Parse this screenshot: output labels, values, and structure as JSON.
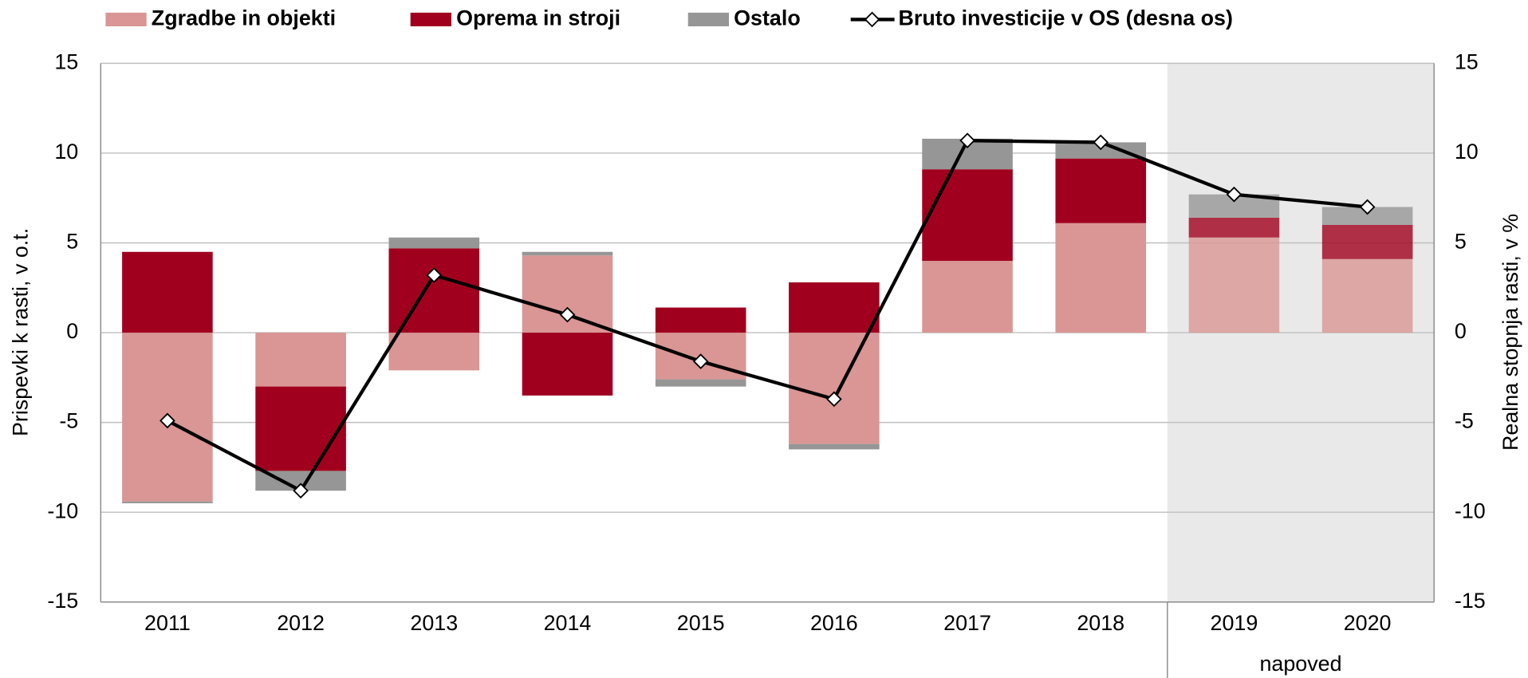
{
  "chart_data": {
    "type": "bar",
    "stacked": true,
    "categories": [
      "2011",
      "2012",
      "2013",
      "2014",
      "2015",
      "2016",
      "2017",
      "2018",
      "2019",
      "2020"
    ],
    "series": [
      {
        "name": "Zgradbe in objekti",
        "color": "#d99694",
        "values": [
          -9.4,
          -3.0,
          -2.1,
          4.3,
          -2.6,
          -6.2,
          4.0,
          6.1,
          5.3,
          4.1
        ]
      },
      {
        "name": "Oprema in stroji",
        "color": "#a0001e",
        "values": [
          4.5,
          -4.7,
          4.7,
          -3.5,
          1.4,
          2.8,
          5.1,
          3.6,
          1.1,
          1.9
        ]
      },
      {
        "name": "Ostalo",
        "color": "#969696",
        "values": [
          -0.1,
          -1.1,
          0.6,
          0.2,
          -0.4,
          -0.3,
          1.7,
          0.9,
          1.3,
          1.0
        ]
      },
      {
        "name": "Bruto investicije v OS (desna os)",
        "type": "line",
        "axis": "y2",
        "color": "#000000",
        "values": [
          -4.9,
          -8.8,
          3.2,
          1.0,
          -1.6,
          -3.7,
          10.7,
          10.6,
          7.7,
          7.0
        ]
      }
    ],
    "ylabel": "Prispevki k rasti, v o.t.",
    "y2label": "Realna stopnja rasti, v %",
    "ylim": [
      -15,
      15
    ],
    "yticks": [
      15,
      10,
      5,
      0,
      -5,
      -10,
      -15
    ],
    "y2lim": [
      -15,
      15
    ],
    "y2ticks": [
      15,
      10,
      5,
      0,
      -5,
      -10,
      -15
    ],
    "grid": true,
    "legend": "top",
    "forecast_start": "2019",
    "annotation": "napoved"
  }
}
